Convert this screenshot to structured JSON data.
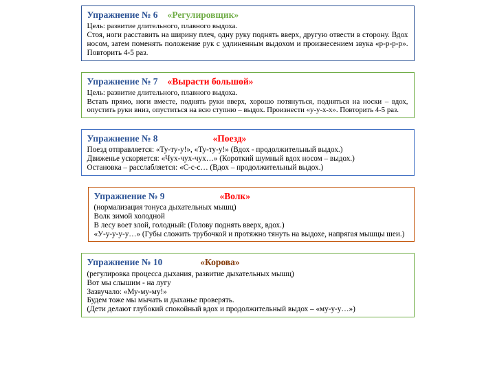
{
  "exercises": [
    {
      "label": "Упражнение № 6",
      "title": "«Регулировщик»",
      "title_color": "green",
      "border_color": "#2f5597",
      "goal": "Цель: развитие длительного, плавного выдоха.",
      "body": "Стоя, ноги расставить на ширину плеч, одну руку поднять вверх, другую отвести в сторону. Вдох носом, затем поменять положение рук с удлиненным выдохом и произнесением звука «р-р-р-р». Повторить 4-5 раз."
    },
    {
      "label": "Упражнение № 7",
      "title": "«Вырасти большой»",
      "title_color": "red",
      "border_color": "#70ad47",
      "goal": "Цель: развитие длительного, плавного выдоха.",
      "body": "Встать прямо, ноги вместе, поднять руки вверх, хорошо потянуться, подняться на носки – вдох, опустить руки вниз, опуститься на всю ступню – выдох. Произнести «у-у-х-х». Повторить 4-5 раз."
    },
    {
      "label": "Упражнение № 8",
      "title": "«Поезд»",
      "title_color": "red",
      "border_color": "#4472c4",
      "line1": "Поезд отправляется: «Ту-ту-у!», «Ту-ту-у!» (Вдох - продолжительный выдох.)",
      "line2": "Движенье ускоряется: «Чух-чух-чух…» (Короткий шумный вдох носом – выдох.)",
      "line3": "Остановка – расслабляется: «С-с-с… (Вдох – продолжительный выдох.)"
    },
    {
      "label": "Упражнение № 9",
      "title": "«Волк»",
      "title_color": "red",
      "border_color": "#c55a11",
      "sub": "(нормализация тонуса дыхательных мышц)",
      "l1": "Волк зимой холодной",
      "l2": "В лесу воет злой, голодный: (Голову поднять вверх, вдох.)",
      "l3": "«У-у-у-у-у…» (Губы сложить трубочкой и протяжно тянуть на выдохе, напрягая мышцы шеи.)"
    },
    {
      "label": "Упражнение № 10",
      "title": "«Корова»",
      "title_color": "brown",
      "border_color": "#70ad47",
      "sub": "(регулировка процесса дыхания, развитие дыхательных мышц)",
      "l1": "Вот мы слышим -  на лугу",
      "l2": "Зазвучало: «Му-му-му!»",
      "l3": "Будем тоже мы мычать и дыханье проверять.",
      "l4": "(Дети делают глубокий спокойный вдох и продолжительный выдох – «му-у-у…»)"
    }
  ],
  "colors": {
    "label": "#2f5597",
    "title_red": "#ff0000",
    "title_green": "#70ad47",
    "title_brown": "#843c0c",
    "background": "#ffffff"
  }
}
